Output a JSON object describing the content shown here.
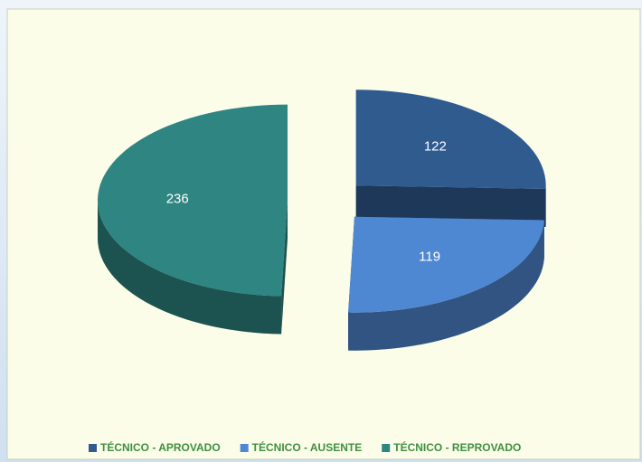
{
  "chart_data": {
    "type": "pie3d",
    "categories": [
      "TÉCNICO - APROVADO",
      "TÉCNICO - AUSENTE",
      "TÉCNICO - REPROVADO"
    ],
    "values": [
      122,
      119,
      236
    ],
    "colors": [
      "#2f5b8f",
      "#4f88d2",
      "#2e8581"
    ],
    "legend": "bottom"
  }
}
